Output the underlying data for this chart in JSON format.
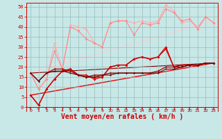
{
  "background_color": "#c8e8e8",
  "grid_color": "#99bbbb",
  "xlabel": "Vent moyen/en rafales ( km/h )",
  "tick_color": "#cc0000",
  "xticks": [
    0,
    1,
    2,
    3,
    4,
    5,
    6,
    7,
    8,
    9,
    10,
    11,
    12,
    13,
    14,
    15,
    16,
    17,
    18,
    19,
    20,
    21,
    22,
    23
  ],
  "yticks": [
    0,
    5,
    10,
    15,
    20,
    25,
    30,
    35,
    40,
    45,
    50
  ],
  "xlim": [
    -0.5,
    23.5
  ],
  "ylim": [
    -2,
    52
  ],
  "series": [
    {
      "x": [
        0,
        1,
        2,
        3,
        4,
        5,
        6,
        7,
        8,
        9,
        10,
        11,
        12,
        13,
        14,
        15,
        16,
        17,
        18,
        19,
        20,
        21,
        22,
        23
      ],
      "y": [
        17,
        9,
        14,
        32,
        19,
        41,
        40,
        39,
        32,
        30,
        42,
        43,
        43,
        42,
        43,
        42,
        43,
        51,
        48,
        42,
        43,
        40,
        45,
        42
      ],
      "color": "#ffaaaa",
      "lw": 0.8,
      "ms": 2.0
    },
    {
      "x": [
        0,
        1,
        2,
        3,
        4,
        5,
        6,
        7,
        8,
        9,
        10,
        11,
        12,
        13,
        14,
        15,
        16,
        17,
        18,
        19,
        20,
        21,
        22,
        23
      ],
      "y": [
        17,
        9,
        14,
        28,
        19,
        40,
        38,
        34,
        32,
        30,
        42,
        43,
        43,
        36,
        42,
        41,
        42,
        49,
        47,
        43,
        44,
        39,
        45,
        42
      ],
      "color": "#ff8888",
      "lw": 0.8,
      "ms": 2.0
    },
    {
      "x": [
        0,
        1,
        2,
        3,
        4,
        5,
        6,
        7,
        8,
        9,
        10,
        11,
        12,
        13,
        14,
        15,
        16,
        17,
        18,
        19,
        20,
        21,
        22,
        23
      ],
      "y": [
        6,
        1,
        9,
        14,
        18,
        19,
        16,
        16,
        14,
        15,
        20,
        21,
        21,
        24,
        25,
        24,
        25,
        30,
        20,
        21,
        21,
        21,
        22,
        22
      ],
      "color": "#ee0000",
      "lw": 1.0,
      "ms": 2.0
    },
    {
      "x": [
        0,
        1,
        2,
        3,
        4,
        5,
        6,
        7,
        8,
        9,
        10,
        11,
        12,
        13,
        14,
        15,
        16,
        17,
        18,
        19,
        20,
        21,
        22,
        23
      ],
      "y": [
        6,
        1,
        9,
        14,
        18,
        19,
        16,
        15,
        15,
        15,
        20,
        21,
        21,
        24,
        25,
        24,
        25,
        29,
        20,
        21,
        21,
        21,
        22,
        22
      ],
      "color": "#cc0000",
      "lw": 0.9,
      "ms": 1.8
    },
    {
      "x": [
        0,
        1,
        2,
        3,
        4,
        5,
        6,
        7,
        8,
        9,
        10,
        11,
        12,
        13,
        14,
        15,
        16,
        17,
        18,
        19,
        20,
        21,
        22,
        23
      ],
      "y": [
        17,
        13,
        17,
        19,
        19,
        18,
        16,
        15,
        16,
        16,
        17,
        17,
        17,
        17,
        17,
        17,
        18,
        20,
        20,
        20,
        21,
        21,
        22,
        22
      ],
      "color": "#990000",
      "lw": 0.9,
      "ms": 1.6
    },
    {
      "x": [
        0,
        1,
        2,
        3,
        4,
        5,
        6,
        7,
        8,
        9,
        10,
        11,
        12,
        13,
        14,
        15,
        16,
        17,
        18,
        19,
        20,
        21,
        22,
        23
      ],
      "y": [
        17,
        13,
        17,
        18,
        18,
        17,
        16,
        15,
        15,
        16,
        16,
        17,
        17,
        17,
        17,
        17,
        17,
        19,
        19,
        20,
        21,
        21,
        22,
        22
      ],
      "color": "#660000",
      "lw": 0.8,
      "ms": 1.4
    }
  ],
  "trend_lines": [
    {
      "x0": 0,
      "y0": 17,
      "x1": 23,
      "y1": 43,
      "color": "#ffcccc",
      "lw": 0.8
    },
    {
      "x0": 0,
      "y0": 6,
      "x1": 23,
      "y1": 22,
      "color": "#ee0000",
      "lw": 1.0
    },
    {
      "x0": 0,
      "y0": 17,
      "x1": 23,
      "y1": 22,
      "color": "#880000",
      "lw": 0.8
    }
  ],
  "wind_symbols": [
    0,
    1,
    2,
    3,
    4,
    5,
    6,
    7,
    8,
    9,
    10,
    11,
    12,
    13,
    14,
    15,
    16,
    17,
    18,
    19,
    20,
    21,
    22,
    23
  ]
}
